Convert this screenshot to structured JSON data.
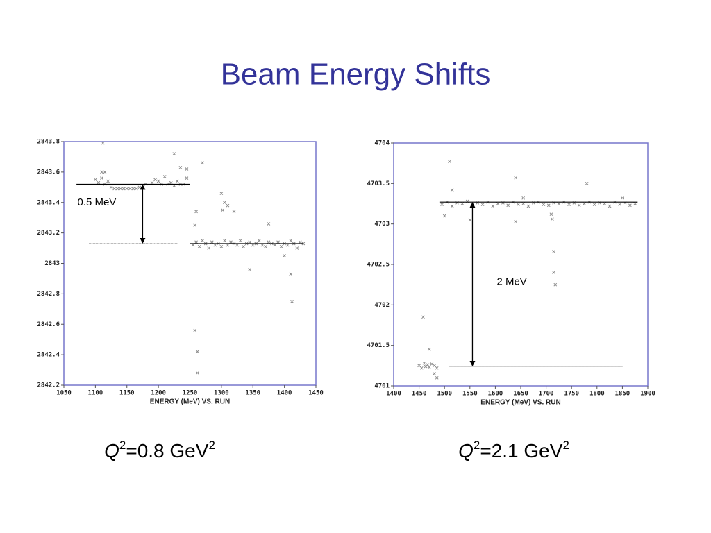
{
  "title": "Beam Energy Shifts",
  "chart_data": [
    {
      "type": "scatter",
      "xlabel": "ENERGY (MeV) VS. RUN",
      "color": "#8a8a8a",
      "xlim": [
        1050,
        1450
      ],
      "xticks": [
        1050,
        1100,
        1150,
        1200,
        1250,
        1300,
        1350,
        1400,
        1450
      ],
      "ylim": [
        2842.2,
        2843.8
      ],
      "yticks": [
        2842.2,
        2842.4,
        2842.6,
        2842.8,
        2843,
        2843.2,
        2843.4,
        2843.6,
        2843.8
      ],
      "x": [
        1100,
        1105,
        1110,
        1112,
        1115,
        1120,
        1125,
        1130,
        1135,
        1140,
        1145,
        1150,
        1155,
        1160,
        1165,
        1170,
        1180,
        1190,
        1195,
        1200,
        1205,
        1210,
        1215,
        1220,
        1225,
        1230,
        1235,
        1240,
        1245,
        1110,
        1115,
        1225,
        1235,
        1245,
        1255,
        1260,
        1265,
        1270,
        1275,
        1280,
        1285,
        1290,
        1295,
        1300,
        1305,
        1310,
        1315,
        1320,
        1325,
        1330,
        1335,
        1340,
        1345,
        1350,
        1355,
        1360,
        1365,
        1370,
        1375,
        1380,
        1385,
        1390,
        1395,
        1400,
        1405,
        1410,
        1415,
        1420,
        1425,
        1430,
        1258,
        1260,
        1262,
        1258,
        1262,
        1270,
        1300,
        1305,
        1310,
        1302,
        1320,
        1345,
        1375,
        1410,
        1412,
        1400
      ],
      "y": [
        2843.55,
        2843.53,
        2843.56,
        2843.79,
        2843.52,
        2843.54,
        2843.5,
        2843.49,
        2843.49,
        2843.49,
        2843.49,
        2843.49,
        2843.49,
        2843.49,
        2843.49,
        2843.5,
        2843.52,
        2843.53,
        2843.55,
        2843.54,
        2843.52,
        2843.57,
        2843.52,
        2843.53,
        2843.51,
        2843.54,
        2843.52,
        2843.52,
        2843.56,
        2843.6,
        2843.6,
        2843.72,
        2843.63,
        2843.62,
        2843.12,
        2843.14,
        2843.11,
        2843.15,
        2843.13,
        2843.1,
        2843.14,
        2843.12,
        2843.13,
        2843.11,
        2843.15,
        2843.12,
        2843.14,
        2843.13,
        2843.12,
        2843.15,
        2843.11,
        2843.13,
        2843.14,
        2843.12,
        2843.13,
        2843.15,
        2843.12,
        2843.11,
        2843.14,
        2843.13,
        2843.12,
        2843.14,
        2843.11,
        2843.13,
        2843.12,
        2843.15,
        2843.13,
        2843.1,
        2843.14,
        2843.13,
        2843.25,
        2843.34,
        2842.42,
        2842.56,
        2842.28,
        2843.66,
        2843.46,
        2843.4,
        2843.38,
        2843.35,
        2843.34,
        2842.96,
        2843.26,
        2842.93,
        2842.75,
        2843.05
      ],
      "hlines": [
        {
          "value": 2843.52,
          "x": [
            1070,
            1250
          ],
          "style": "solid"
        },
        {
          "value": 2843.13,
          "x": [
            1090,
            1230
          ],
          "style": "dotted"
        },
        {
          "value": 2843.13,
          "x": [
            1250,
            1430
          ],
          "style": "solid"
        }
      ],
      "annotation": {
        "text": "0.5 MeV",
        "x": 1175
      },
      "caption": [
        "Q",
        "2",
        "=0.8 GeV",
        "2"
      ]
    },
    {
      "type": "scatter",
      "xlabel": "ENERGY (MeV) VS. RUN",
      "color": "#8a8a8a",
      "xlim": [
        1400,
        1900
      ],
      "xticks": [
        1400,
        1450,
        1500,
        1550,
        1600,
        1650,
        1700,
        1750,
        1800,
        1850,
        1900
      ],
      "ylim": [
        4701,
        4704
      ],
      "yticks": [
        4701,
        4701.5,
        4702,
        4702.5,
        4703,
        4703.5,
        4704
      ],
      "x": [
        1450,
        1455,
        1460,
        1463,
        1467,
        1470,
        1475,
        1480,
        1485,
        1458,
        1470,
        1485,
        1480,
        1495,
        1505,
        1515,
        1525,
        1535,
        1545,
        1555,
        1565,
        1575,
        1585,
        1595,
        1605,
        1615,
        1625,
        1635,
        1645,
        1655,
        1665,
        1675,
        1685,
        1695,
        1705,
        1715,
        1725,
        1735,
        1745,
        1755,
        1765,
        1775,
        1785,
        1795,
        1805,
        1815,
        1825,
        1835,
        1845,
        1855,
        1865,
        1875,
        1510,
        1515,
        1500,
        1550,
        1640,
        1640,
        1655,
        1710,
        1712,
        1715,
        1715,
        1718,
        1780,
        1850
      ],
      "y": [
        4701.25,
        4701.22,
        4701.28,
        4701.24,
        4701.26,
        4701.23,
        4701.27,
        4701.25,
        4701.22,
        4701.85,
        4701.45,
        4701.1,
        4701.15,
        4703.24,
        4703.27,
        4703.22,
        4703.26,
        4703.25,
        4703.28,
        4703.23,
        4703.26,
        4703.24,
        4703.27,
        4703.22,
        4703.25,
        4703.26,
        4703.23,
        4703.27,
        4703.24,
        4703.25,
        4703.22,
        4703.26,
        4703.27,
        4703.24,
        4703.23,
        4703.26,
        4703.25,
        4703.27,
        4703.24,
        4703.26,
        4703.23,
        4703.25,
        4703.27,
        4703.24,
        4703.26,
        4703.25,
        4703.22,
        4703.27,
        4703.24,
        4703.26,
        4703.23,
        4703.25,
        4703.77,
        4703.42,
        4703.1,
        4703.05,
        4703.57,
        4703.03,
        4703.32,
        4703.12,
        4703.06,
        4702.66,
        4702.4,
        4702.25,
        4703.5,
        4703.32
      ],
      "hlines": [
        {
          "value": 4703.27,
          "x": [
            1490,
            1880
          ],
          "style": "solid"
        },
        {
          "value": 4701.24,
          "x": [
            1510,
            1850
          ],
          "style": "dotted"
        }
      ],
      "annotation": {
        "text": "2 MeV",
        "x": 1555
      },
      "caption": [
        "Q",
        "2",
        "=2.1 GeV",
        "2"
      ]
    }
  ]
}
